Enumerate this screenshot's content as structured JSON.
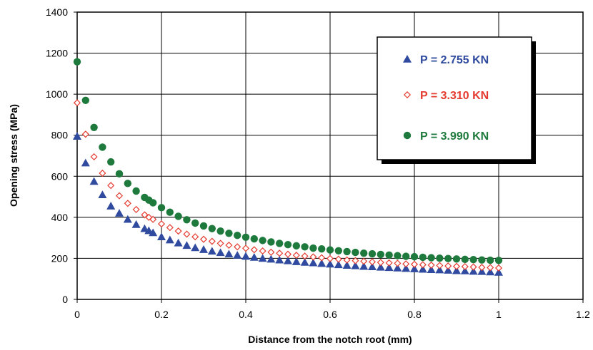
{
  "chart_data": {
    "type": "scatter",
    "title": "",
    "xlabel": "Distance from the notch root (mm)",
    "ylabel": "Opening stress (MPa)",
    "xlim": [
      0,
      1.2
    ],
    "ylim": [
      0,
      1400
    ],
    "x_ticks": [
      "0",
      "0.2",
      "0.4",
      "0.6",
      "0.8",
      "1",
      "1.2"
    ],
    "y_ticks": [
      "0",
      "200",
      "400",
      "600",
      "800",
      "1000",
      "1200",
      "1400"
    ],
    "grid": true,
    "legend_position": "top-right",
    "series": [
      {
        "name": "P = 2.755 KN",
        "marker": "triangle",
        "color": "#2f4a9e",
        "x": [
          0,
          0.02,
          0.04,
          0.06,
          0.08,
          0.1,
          0.12,
          0.14,
          0.16,
          0.17,
          0.18,
          0.2,
          0.22,
          0.24,
          0.26,
          0.28,
          0.3,
          0.32,
          0.34,
          0.36,
          0.38,
          0.4,
          0.42,
          0.44,
          0.46,
          0.48,
          0.5,
          0.52,
          0.54,
          0.56,
          0.58,
          0.6,
          0.62,
          0.64,
          0.66,
          0.68,
          0.7,
          0.72,
          0.74,
          0.76,
          0.78,
          0.8,
          0.82,
          0.84,
          0.86,
          0.88,
          0.9,
          0.92,
          0.94,
          0.96,
          0.98,
          1.0
        ],
        "y": [
          795,
          665,
          575,
          510,
          455,
          420,
          390,
          365,
          345,
          335,
          325,
          305,
          290,
          275,
          263,
          252,
          243,
          235,
          228,
          221,
          215,
          210,
          205,
          200,
          196,
          192,
          188,
          184,
          181,
          178,
          175,
          172,
          169,
          166,
          164,
          161,
          159,
          157,
          155,
          153,
          151,
          149,
          147,
          145,
          144,
          142,
          140,
          139,
          137,
          136,
          134,
          132
        ]
      },
      {
        "name": "P = 3.310 KN",
        "marker": "diamond-open",
        "color": "#e53a2f",
        "x": [
          0,
          0.02,
          0.04,
          0.06,
          0.08,
          0.1,
          0.12,
          0.14,
          0.16,
          0.17,
          0.18,
          0.2,
          0.22,
          0.24,
          0.26,
          0.28,
          0.3,
          0.32,
          0.34,
          0.36,
          0.38,
          0.4,
          0.42,
          0.44,
          0.46,
          0.48,
          0.5,
          0.52,
          0.54,
          0.56,
          0.58,
          0.6,
          0.62,
          0.64,
          0.66,
          0.68,
          0.7,
          0.72,
          0.74,
          0.76,
          0.78,
          0.8,
          0.82,
          0.84,
          0.86,
          0.88,
          0.9,
          0.92,
          0.94,
          0.96,
          0.98,
          1.0
        ],
        "y": [
          958,
          805,
          695,
          615,
          555,
          505,
          468,
          438,
          412,
          400,
          390,
          368,
          350,
          333,
          318,
          305,
          293,
          283,
          273,
          264,
          256,
          249,
          242,
          236,
          230,
          225,
          220,
          215,
          211,
          207,
          203,
          199,
          196,
          192,
          189,
          186,
          183,
          180,
          178,
          176,
          173,
          171,
          169,
          167,
          165,
          163,
          161,
          160,
          158,
          156,
          155,
          153
        ]
      },
      {
        "name": "P = 3.990 KN",
        "marker": "circle",
        "color": "#1e7a3c",
        "x": [
          0,
          0.02,
          0.04,
          0.06,
          0.08,
          0.1,
          0.12,
          0.14,
          0.16,
          0.17,
          0.18,
          0.2,
          0.22,
          0.24,
          0.26,
          0.28,
          0.3,
          0.32,
          0.34,
          0.36,
          0.38,
          0.4,
          0.42,
          0.44,
          0.46,
          0.48,
          0.5,
          0.52,
          0.54,
          0.56,
          0.58,
          0.6,
          0.62,
          0.64,
          0.66,
          0.68,
          0.7,
          0.72,
          0.74,
          0.76,
          0.78,
          0.8,
          0.82,
          0.84,
          0.86,
          0.88,
          0.9,
          0.92,
          0.94,
          0.96,
          0.98,
          1.0
        ],
        "y": [
          1158,
          970,
          838,
          742,
          670,
          612,
          565,
          528,
          497,
          484,
          471,
          447,
          425,
          405,
          388,
          372,
          358,
          345,
          333,
          322,
          312,
          303,
          295,
          287,
          280,
          273,
          267,
          261,
          256,
          250,
          246,
          241,
          237,
          233,
          229,
          225,
          222,
          219,
          216,
          213,
          210,
          208,
          205,
          203,
          201,
          199,
          197,
          195,
          194,
          192,
          191,
          190
        ]
      }
    ]
  }
}
